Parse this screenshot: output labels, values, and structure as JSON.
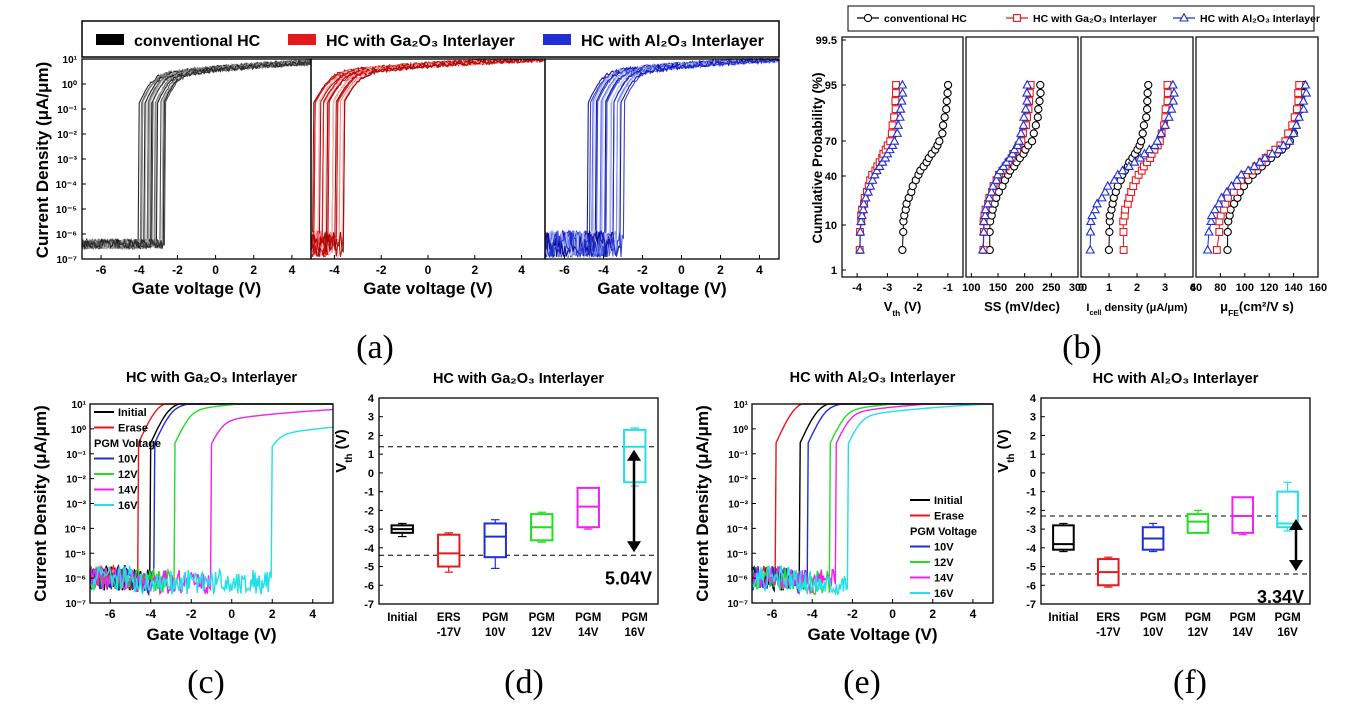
{
  "figure": {
    "colors": {
      "black": "#000000",
      "grey": "#7f7f7f",
      "red": "#e31a1c",
      "blue": "#1f2fd6",
      "green": "#22dd22",
      "magenta": "#ee22ee",
      "cyan": "#22e0e8"
    },
    "panel_labels": [
      "(a)",
      "(b)",
      "(c)",
      "(d)",
      "(e)",
      "(f)"
    ]
  },
  "chart_data": [
    {
      "id": "a",
      "type": "line",
      "xlabel": "Gate voltage (V)",
      "ylabel": "Current Density (μA/μm)",
      "log_y": true,
      "ylim": [
        1e-07,
        10
      ],
      "legend": [
        "conventional HC",
        "HC with Ga₂O₃ Interlayer",
        "HC with Al₂O₃ Interlayer"
      ],
      "legend_colors": [
        "#000000",
        "#e31a1c",
        "#1f2fd6"
      ],
      "subpanels": [
        {
          "name": "conventional HC",
          "xlim": [
            -7,
            5
          ],
          "xticks": [
            "-6",
            "-4",
            "-2",
            "0",
            "2",
            "4"
          ],
          "shades": [
            "#111111",
            "#3a3a3a",
            "#666666",
            "#8c8c8c",
            "#b0b0b0"
          ],
          "vt_range": [
            -3.6,
            -2.2
          ],
          "ion": 2.0
        },
        {
          "name": "HC with Ga₂O₃ Interlayer",
          "xlim": [
            -5,
            5
          ],
          "xticks": [
            "-4",
            "-2",
            "0",
            "2",
            "4"
          ],
          "shades": [
            "#8b0000",
            "#c00000",
            "#e31a1c",
            "#f47a7a",
            "#fbc0c0"
          ],
          "vt_range": [
            -4.5,
            -3.2
          ],
          "ion": 2.5
        },
        {
          "name": "HC with Al₂O₃ Interlayer",
          "xlim": [
            -7,
            5
          ],
          "xticks": [
            "-6",
            "-4",
            "-2",
            "0",
            "2",
            "4"
          ],
          "shades": [
            "#00008b",
            "#1f2fd6",
            "#4a5ae8",
            "#8e9af0",
            "#c8cff8"
          ],
          "vt_range": [
            -4.4,
            -2.6
          ],
          "ion": 2.5
        }
      ],
      "yticks": [
        "10⁰",
        "10⁻⁷"
      ]
    },
    {
      "id": "b",
      "type": "scatter",
      "ylabel": "Cumulative Probability (%)",
      "ytick_labels": [
        "1",
        "10",
        "40",
        "70",
        "95",
        "99.5"
      ],
      "ytick_values": [
        1,
        10,
        40,
        70,
        95,
        99.5
      ],
      "legend": [
        "conventional HC",
        "HC with Ga₂O₃ Interlayer",
        "HC with Al₂O₃ Interlayer"
      ],
      "series_colors": [
        "#000000",
        "#e31a1c",
        "#1f2fd6"
      ],
      "series_markers": [
        "circle",
        "square",
        "triangle"
      ],
      "subpanels": [
        {
          "xlabel": "V_th (V)",
          "xlim": [
            -4.5,
            -0.5
          ],
          "xticks": [
            "-4",
            "-3",
            "-2",
            "-1"
          ],
          "xtick_values": [
            -4,
            -3,
            -2,
            -1
          ],
          "ranges": [
            [
              -2.5,
              -1.0
            ],
            [
              -3.9,
              -2.7
            ],
            [
              -3.9,
              -2.5
            ]
          ]
        },
        {
          "xlabel": "SS (mV/dec)",
          "xlim": [
            90,
            300
          ],
          "xticks": [
            "100",
            "150",
            "200",
            "250",
            "300"
          ],
          "xtick_values": [
            100,
            150,
            200,
            250,
            300
          ],
          "ranges": [
            [
              135,
              230
            ],
            [
              122,
              210
            ],
            [
              122,
              205
            ]
          ]
        },
        {
          "xlabel": "I_cell density (μA/μm)",
          "xlim": [
            0,
            4
          ],
          "xticks": [
            "0",
            "1",
            "2",
            "3",
            "4"
          ],
          "xtick_values": [
            0,
            1,
            2,
            3,
            4
          ],
          "ranges": [
            [
              1.0,
              2.4
            ],
            [
              1.5,
              3.1
            ],
            [
              0.3,
              3.3
            ]
          ]
        },
        {
          "xlabel": "μ_FE(cm²/V s)",
          "xlim": [
            60,
            160
          ],
          "xticks": [
            "60",
            "80",
            "100",
            "120",
            "140",
            "160"
          ],
          "xtick_values": [
            60,
            80,
            100,
            120,
            140,
            160
          ],
          "ranges": [
            [
              85,
              148
            ],
            [
              78,
              145
            ],
            [
              70,
              150
            ]
          ]
        }
      ]
    },
    {
      "id": "c",
      "type": "line",
      "title": "HC with Ga₂O₃ Interlayer",
      "xlabel": "Gate Voltage (V)",
      "ylabel": "Current Density (μA/μm)",
      "log_y": true,
      "ylim": [
        1e-07,
        10
      ],
      "xlim": [
        -7,
        5
      ],
      "xticks": [
        "-6",
        "-4",
        "-2",
        "0",
        "2",
        "4"
      ],
      "legend_header": "PGM Voltage",
      "series": [
        {
          "name": "Initial",
          "color": "#000000",
          "vt": -3.7,
          "ion": 8
        },
        {
          "name": "Erase",
          "color": "#e31a1c",
          "vt": -4.3,
          "ion": 9
        },
        {
          "name": "10V",
          "color": "#1f2fd6",
          "vt": -3.5,
          "ion": 7
        },
        {
          "name": "12V",
          "color": "#22dd22",
          "vt": -2.5,
          "ion": 5
        },
        {
          "name": "14V",
          "color": "#ee22ee",
          "vt": -0.7,
          "ion": 2
        },
        {
          "name": "16V",
          "color": "#22e0e8",
          "vt": 2.3,
          "ion": 0.6
        }
      ]
    },
    {
      "id": "d",
      "type": "box",
      "title": "HC with Ga₂O₃ Interlayer",
      "ylabel": "V_th (V)",
      "ylim": [
        -7,
        4
      ],
      "categories": [
        "Initial",
        "ERS\n-17V",
        "PGM\n10V",
        "PGM\n12V",
        "PGM\n14V",
        "PGM\n16V"
      ],
      "colors": [
        "#000000",
        "#e31a1c",
        "#1f2fd6",
        "#22dd22",
        "#ee22ee",
        "#22e0e8"
      ],
      "boxes": [
        [
          -3.4,
          -3.2,
          -3.0,
          -2.8,
          -2.7
        ],
        [
          -5.3,
          -5.0,
          -4.3,
          -3.3,
          -3.2
        ],
        [
          -5.1,
          -4.5,
          -3.4,
          -2.7,
          -2.5
        ],
        [
          -3.7,
          -3.6,
          -2.9,
          -2.2,
          -2.1
        ],
        [
          -3.0,
          -2.9,
          -1.8,
          -0.8,
          -0.8
        ],
        [
          -0.7,
          -0.5,
          1.4,
          2.3,
          2.4
        ]
      ],
      "ref_lines": [
        1.4,
        -4.4
      ],
      "annotation": "5.04V"
    },
    {
      "id": "e",
      "type": "line",
      "title": "HC with Al₂O₃ Interlayer",
      "xlabel": "Gate Voltage (V)",
      "ylabel": "Current Density (μA/μm)",
      "log_y": true,
      "ylim": [
        1e-07,
        10
      ],
      "xlim": [
        -7,
        5
      ],
      "xticks": [
        "-6",
        "-4",
        "-2",
        "0",
        "2",
        "4"
      ],
      "legend_header": "PGM Voltage",
      "series": [
        {
          "name": "Initial",
          "color": "#000000",
          "vt": -4.3,
          "ion": 8
        },
        {
          "name": "Erase",
          "color": "#e31a1c",
          "vt": -5.5,
          "ion": 9
        },
        {
          "name": "10V",
          "color": "#1f2fd6",
          "vt": -3.9,
          "ion": 7
        },
        {
          "name": "12V",
          "color": "#22dd22",
          "vt": -2.8,
          "ion": 5
        },
        {
          "name": "14V",
          "color": "#ee22ee",
          "vt": -2.5,
          "ion": 4
        },
        {
          "name": "16V",
          "color": "#22e0e8",
          "vt": -1.9,
          "ion": 3
        }
      ]
    },
    {
      "id": "f",
      "type": "box",
      "title": "HC with Al₂O₃ Interlayer",
      "ylabel": "V_th (V)",
      "ylim": [
        -7,
        4
      ],
      "categories": [
        "Initial",
        "ERS\n-17V",
        "PGM\n10V",
        "PGM\n12V",
        "PGM\n14V",
        "PGM\n16V"
      ],
      "colors": [
        "#000000",
        "#e31a1c",
        "#1f2fd6",
        "#22dd22",
        "#ee22ee",
        "#22e0e8"
      ],
      "boxes": [
        [
          -4.2,
          -4.1,
          -3.8,
          -2.8,
          -2.7
        ],
        [
          -6.1,
          -6.0,
          -5.3,
          -4.6,
          -4.5
        ],
        [
          -4.2,
          -4.1,
          -3.5,
          -2.9,
          -2.7
        ],
        [
          -3.2,
          -3.2,
          -2.6,
          -2.2,
          -2.0
        ],
        [
          -3.3,
          -3.2,
          -2.3,
          -1.3,
          -1.3
        ],
        [
          -3.1,
          -2.9,
          -2.7,
          -1.0,
          -0.5
        ]
      ],
      "ref_lines": [
        -2.3,
        -5.4
      ],
      "annotation": "3.34V"
    }
  ]
}
